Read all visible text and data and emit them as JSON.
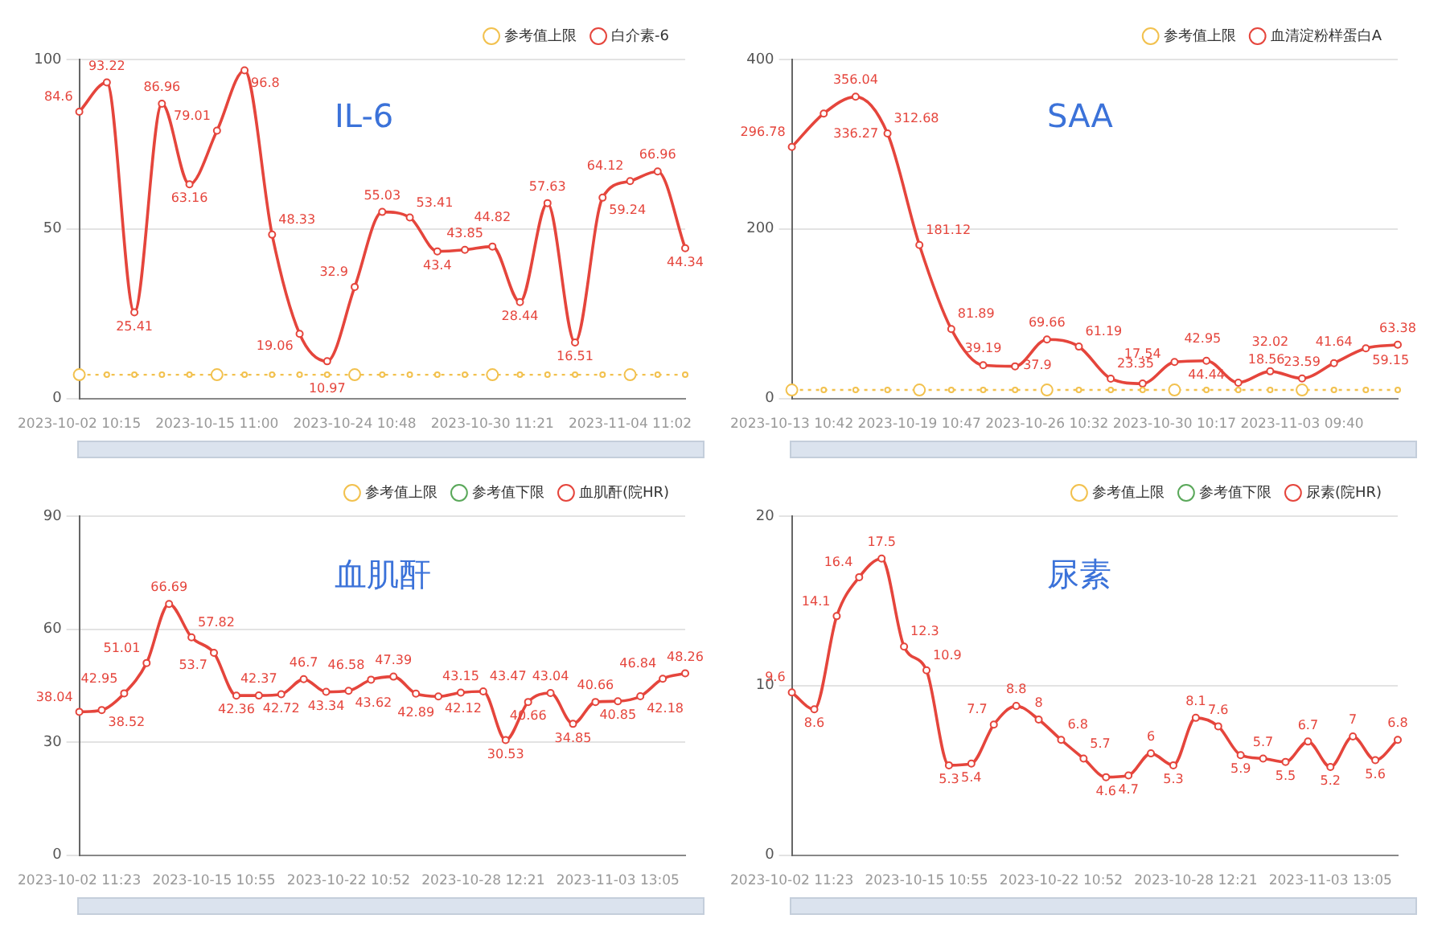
{
  "chart_data": [
    {
      "type": "line",
      "title": "IL-6",
      "categories": [
        "2023-10-02 10:15",
        null,
        null,
        null,
        null,
        "2023-10-15 11:00",
        null,
        null,
        null,
        null,
        "2023-10-24 10:48",
        null,
        null,
        null,
        null,
        "2023-10-30 11:21",
        null,
        null,
        null,
        null,
        "2023-11-04 11:02",
        null,
        null
      ],
      "series": [
        {
          "name": "参考值上限",
          "color": "#f2c14e",
          "line_style": "dotted",
          "values": [
            7,
            7,
            7,
            7,
            7,
            7,
            7,
            7,
            7,
            7,
            7,
            7,
            7,
            7,
            7,
            7,
            7,
            7,
            7,
            7,
            7,
            7,
            7
          ]
        },
        {
          "name": "白介素-6",
          "color": "#e5453c",
          "line_style": "solid",
          "values": [
            84.6,
            93.22,
            25.41,
            86.96,
            63.16,
            79.01,
            96.8,
            48.33,
            19.06,
            10.97,
            32.9,
            55.03,
            53.41,
            43.4,
            43.85,
            44.82,
            28.44,
            57.63,
            16.51,
            59.24,
            64.12,
            66.96,
            44.34
          ],
          "value_labels": [
            "84.6",
            "93.22",
            "25.41",
            "86.96",
            "63.16",
            "79.01",
            "96.8",
            "48.33",
            "19.06",
            "10.97",
            "32.9",
            "55.03",
            "53.41",
            "43.4",
            "43.85",
            "44.82",
            "28.44",
            "57.63",
            "16.51",
            "59.24",
            "64.12",
            "66.96",
            "44.34"
          ]
        }
      ],
      "ylim": [
        0,
        100
      ],
      "yticks": [
        0,
        50,
        100
      ],
      "grid": "y",
      "legend": "top right",
      "marker": "circle"
    },
    {
      "type": "line",
      "title": "SAA",
      "categories": [
        "2023-10-13 10:42",
        null,
        null,
        null,
        "2023-10-19 10:47",
        null,
        null,
        null,
        "2023-10-26 10:32",
        null,
        null,
        null,
        "2023-10-30 10:17",
        null,
        null,
        null,
        "2023-11-03 09:40",
        null,
        null,
        null
      ],
      "series": [
        {
          "name": "参考值上限",
          "color": "#f2c14e",
          "line_style": "dotted",
          "values": [
            10,
            10,
            10,
            10,
            10,
            10,
            10,
            10,
            10,
            10,
            10,
            10,
            10,
            10,
            10,
            10,
            10,
            10,
            10,
            10
          ]
        },
        {
          "name": "血清淀粉样蛋白A",
          "color": "#e5453c",
          "line_style": "solid",
          "values": [
            296.78,
            336.27,
            356.04,
            312.68,
            181.12,
            81.89,
            39.19,
            37.9,
            69.66,
            61.19,
            23.35,
            17.54,
            42.95,
            44.44,
            18.56,
            32.02,
            23.59,
            41.64,
            59.15,
            63.38
          ],
          "value_labels": [
            "296.78",
            "336.27",
            "356.04",
            "312.68",
            "181.12",
            "81.89",
            "39.19",
            "37.9",
            "69.66",
            "61.19",
            "23.35",
            "17.54",
            "42.95",
            "44.44",
            "18.56",
            "32.02",
            "23.59",
            "41.64",
            "59.15",
            "63.38"
          ]
        }
      ],
      "ylim": [
        0,
        400
      ],
      "yticks": [
        0,
        200,
        400
      ],
      "grid": "y",
      "legend": "top right",
      "marker": "circle"
    },
    {
      "type": "line",
      "title": "血肌酐",
      "categories": [
        "2023-10-02 11:23",
        null,
        null,
        null,
        null,
        null,
        "2023-10-15 10:55",
        null,
        null,
        null,
        null,
        null,
        "2023-10-22 10:52",
        null,
        null,
        null,
        null,
        null,
        "2023-10-28 12:21",
        null,
        null,
        null,
        null,
        null,
        "2023-11-03 13:05",
        null,
        null,
        null
      ],
      "series": [
        {
          "name": "参考值上限",
          "color": "#f2c14e",
          "line_style": "dotted",
          "values": [
            null,
            null,
            null,
            null,
            null,
            null,
            null,
            null,
            null,
            null,
            null,
            null,
            null,
            null,
            null,
            null,
            null,
            null,
            null,
            null,
            null,
            null,
            null,
            null,
            null,
            null,
            null,
            null
          ]
        },
        {
          "name": "参考值下限",
          "color": "#5aa85a",
          "line_style": "dotted",
          "values": [
            null,
            null,
            null,
            null,
            null,
            null,
            null,
            null,
            null,
            null,
            null,
            null,
            null,
            null,
            null,
            null,
            null,
            null,
            null,
            null,
            null,
            null,
            null,
            null,
            null,
            null,
            null,
            null
          ]
        },
        {
          "name": "血肌酐(院HR)",
          "color": "#e5453c",
          "line_style": "solid",
          "values": [
            38.04,
            38.52,
            42.95,
            51.01,
            66.69,
            57.82,
            53.7,
            42.36,
            42.37,
            42.72,
            46.7,
            43.34,
            43.62,
            46.58,
            47.39,
            42.89,
            42.12,
            43.15,
            43.47,
            30.53,
            40.66,
            43.04,
            34.85,
            40.66,
            40.85,
            42.18,
            46.84,
            48.26
          ],
          "value_labels": [
            "38.04",
            "38.52",
            "42.95",
            "51.01",
            "66.69",
            "57.82",
            "53.7",
            "42.36",
            "42.37",
            "42.72",
            "46.7",
            "43.34",
            "43.62",
            "46.58",
            "47.39",
            "42.89",
            "42.12",
            "43.15",
            "43.47",
            "30.53",
            "40.66",
            "43.04",
            "34.85",
            "40.66",
            "40.85",
            "42.18",
            "46.84",
            "48.26"
          ]
        }
      ],
      "ylim": [
        0,
        90
      ],
      "yticks": [
        0,
        30,
        60,
        90
      ],
      "grid": "y",
      "legend": "top right",
      "marker": "circle"
    },
    {
      "type": "line",
      "title": "尿素",
      "categories": [
        "2023-10-02 11:23",
        null,
        null,
        null,
        null,
        null,
        "2023-10-15 10:55",
        null,
        null,
        null,
        null,
        null,
        "2023-10-22 10:52",
        null,
        null,
        null,
        null,
        null,
        "2023-10-28 12:21",
        null,
        null,
        null,
        null,
        null,
        "2023-11-03 13:05",
        null,
        null,
        null
      ],
      "series": [
        {
          "name": "参考值上限",
          "color": "#f2c14e",
          "line_style": "dotted",
          "values": [
            null,
            null,
            null,
            null,
            null,
            null,
            null,
            null,
            null,
            null,
            null,
            null,
            null,
            null,
            null,
            null,
            null,
            null,
            null,
            null,
            null,
            null,
            null,
            null,
            null,
            null,
            null,
            null
          ]
        },
        {
          "name": "参考值下限",
          "color": "#5aa85a",
          "line_style": "dotted",
          "values": [
            null,
            null,
            null,
            null,
            null,
            null,
            null,
            null,
            null,
            null,
            null,
            null,
            null,
            null,
            null,
            null,
            null,
            null,
            null,
            null,
            null,
            null,
            null,
            null,
            null,
            null,
            null,
            null
          ]
        },
        {
          "name": "尿素(院HR)",
          "color": "#e5453c",
          "line_style": "solid",
          "values": [
            9.6,
            8.6,
            14.1,
            16.4,
            17.5,
            12.3,
            10.9,
            5.3,
            5.4,
            7.7,
            8.8,
            8,
            6.8,
            5.7,
            4.6,
            4.7,
            6,
            5.3,
            8.1,
            7.6,
            5.9,
            5.7,
            5.5,
            6.7,
            5.2,
            7,
            5.6,
            6.8
          ],
          "value_labels": [
            "9.6",
            "8.6",
            "14.1",
            "16.4",
            "17.5",
            "12.3",
            "10.9",
            "5.3",
            "5.4",
            "7.7",
            "8.8",
            "8",
            "6.8",
            "5.7",
            "4.6",
            "4.7",
            "6",
            "5.3",
            "8.1",
            "7.6",
            "5.9",
            "5.7",
            "5.5",
            "6.7",
            "5.2",
            "7",
            "5.6",
            "6.8"
          ]
        }
      ],
      "ylim": [
        0,
        20
      ],
      "yticks": [
        0,
        10,
        20
      ],
      "grid": "y",
      "legend": "top right",
      "marker": "circle"
    }
  ]
}
